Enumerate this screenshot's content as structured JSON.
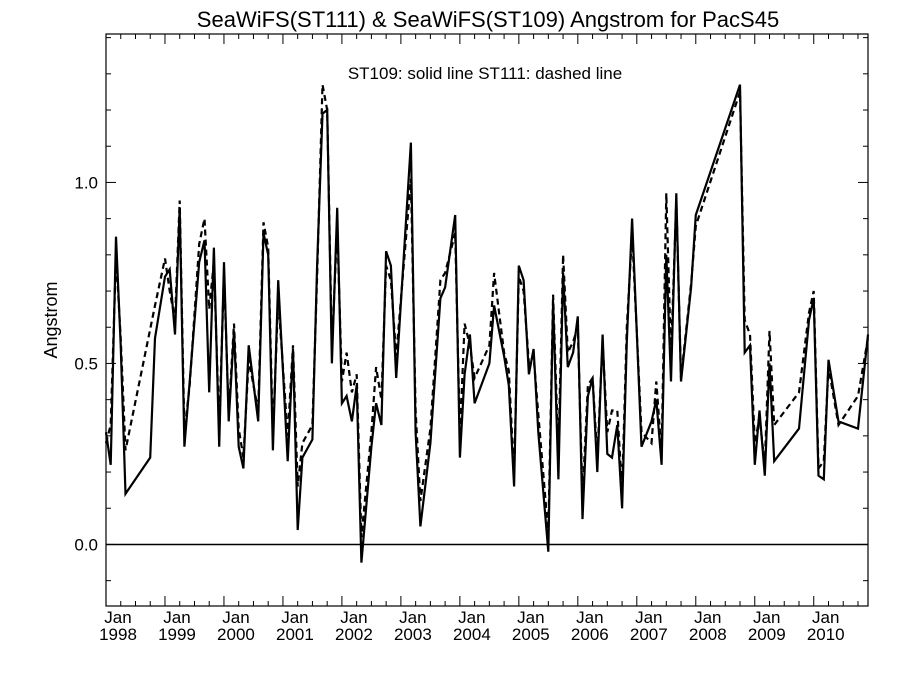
{
  "chart_data": {
    "type": "line",
    "title": "SeaWiFS(ST111) & SeaWiFS(ST109)  Angstrom for PacS45",
    "annotation": "ST109: solid line   ST111: dashed line",
    "ylabel": "Angstrom",
    "xlabel": "",
    "x_unit": "decimal year",
    "xlim": [
      1998.0,
      2010.92
    ],
    "ylim": [
      -0.17,
      1.41
    ],
    "yticks": [
      0.0,
      0.5,
      1.0
    ],
    "ytick_labels": [
      "0.0",
      "0.5",
      "1.0"
    ],
    "xticks": [
      {
        "month": "Jan",
        "year": "1998",
        "x": 1998
      },
      {
        "month": "Jan",
        "year": "1999",
        "x": 1999
      },
      {
        "month": "Jan",
        "year": "2000",
        "x": 2000
      },
      {
        "month": "Jan",
        "year": "2001",
        "x": 2001
      },
      {
        "month": "Jan",
        "year": "2002",
        "x": 2002
      },
      {
        "month": "Jan",
        "year": "2003",
        "x": 2003
      },
      {
        "month": "Jan",
        "year": "2004",
        "x": 2004
      },
      {
        "month": "Jan",
        "year": "2005",
        "x": 2005
      },
      {
        "month": "Jan",
        "year": "2006",
        "x": 2006
      },
      {
        "month": "Jan",
        "year": "2007",
        "x": 2007
      },
      {
        "month": "Jan",
        "year": "2008",
        "x": 2008
      },
      {
        "month": "Jan",
        "year": "2009",
        "x": 2009
      },
      {
        "month": "Jan",
        "year": "2010",
        "x": 2010
      }
    ],
    "grid": false,
    "zero_line": true,
    "series": [
      {
        "line_style": "solid",
        "color": "#000000",
        "points": [
          [
            1998.0,
            0.31
          ],
          [
            1998.08,
            0.22
          ],
          [
            1998.17,
            0.85
          ],
          [
            1998.25,
            0.55
          ],
          [
            1998.33,
            0.14
          ],
          [
            1998.75,
            0.24
          ],
          [
            1998.83,
            0.57
          ],
          [
            1999.0,
            0.74
          ],
          [
            1999.08,
            0.76
          ],
          [
            1999.17,
            0.58
          ],
          [
            1999.25,
            0.93
          ],
          [
            1999.33,
            0.27
          ],
          [
            1999.42,
            0.45
          ],
          [
            1999.58,
            0.78
          ],
          [
            1999.67,
            0.84
          ],
          [
            1999.75,
            0.42
          ],
          [
            1999.83,
            0.82
          ],
          [
            1999.92,
            0.27
          ],
          [
            2000.0,
            0.78
          ],
          [
            2000.08,
            0.34
          ],
          [
            2000.17,
            0.59
          ],
          [
            2000.25,
            0.27
          ],
          [
            2000.33,
            0.21
          ],
          [
            2000.42,
            0.55
          ],
          [
            2000.58,
            0.34
          ],
          [
            2000.67,
            0.86
          ],
          [
            2000.75,
            0.8
          ],
          [
            2000.83,
            0.26
          ],
          [
            2000.92,
            0.73
          ],
          [
            2001.08,
            0.23
          ],
          [
            2001.17,
            0.54
          ],
          [
            2001.25,
            0.04
          ],
          [
            2001.33,
            0.24
          ],
          [
            2001.5,
            0.29
          ],
          [
            2001.58,
            0.77
          ],
          [
            2001.67,
            1.19
          ],
          [
            2001.75,
            1.2
          ],
          [
            2001.83,
            0.5
          ],
          [
            2001.92,
            0.93
          ],
          [
            2002.0,
            0.39
          ],
          [
            2002.08,
            0.41
          ],
          [
            2002.17,
            0.34
          ],
          [
            2002.25,
            0.44
          ],
          [
            2002.33,
            -0.05
          ],
          [
            2002.5,
            0.27
          ],
          [
            2002.58,
            0.39
          ],
          [
            2002.67,
            0.33
          ],
          [
            2002.75,
            0.81
          ],
          [
            2002.83,
            0.77
          ],
          [
            2002.92,
            0.46
          ],
          [
            2003.17,
            1.11
          ],
          [
            2003.25,
            0.31
          ],
          [
            2003.33,
            0.05
          ],
          [
            2003.5,
            0.28
          ],
          [
            2003.67,
            0.68
          ],
          [
            2003.75,
            0.71
          ],
          [
            2003.92,
            0.91
          ],
          [
            2004.0,
            0.24
          ],
          [
            2004.08,
            0.47
          ],
          [
            2004.17,
            0.58
          ],
          [
            2004.25,
            0.39
          ],
          [
            2004.5,
            0.5
          ],
          [
            2004.58,
            0.66
          ],
          [
            2004.75,
            0.52
          ],
          [
            2004.83,
            0.44
          ],
          [
            2004.92,
            0.16
          ],
          [
            2005.0,
            0.77
          ],
          [
            2005.08,
            0.73
          ],
          [
            2005.17,
            0.47
          ],
          [
            2005.25,
            0.54
          ],
          [
            2005.33,
            0.31
          ],
          [
            2005.5,
            -0.02
          ],
          [
            2005.58,
            0.67
          ],
          [
            2005.67,
            0.18
          ],
          [
            2005.75,
            0.75
          ],
          [
            2005.83,
            0.49
          ],
          [
            2005.92,
            0.53
          ],
          [
            2006.0,
            0.63
          ],
          [
            2006.08,
            0.07
          ],
          [
            2006.17,
            0.41
          ],
          [
            2006.25,
            0.46
          ],
          [
            2006.33,
            0.2
          ],
          [
            2006.42,
            0.58
          ],
          [
            2006.5,
            0.25
          ],
          [
            2006.58,
            0.24
          ],
          [
            2006.67,
            0.33
          ],
          [
            2006.75,
            0.1
          ],
          [
            2006.83,
            0.56
          ],
          [
            2006.92,
            0.9
          ],
          [
            2007.08,
            0.27
          ],
          [
            2007.25,
            0.34
          ],
          [
            2007.33,
            0.4
          ],
          [
            2007.42,
            0.22
          ],
          [
            2007.5,
            0.8
          ],
          [
            2007.58,
            0.45
          ],
          [
            2007.67,
            0.97
          ],
          [
            2007.75,
            0.45
          ],
          [
            2007.92,
            0.71
          ],
          [
            2008.0,
            0.91
          ],
          [
            2008.75,
            1.27
          ],
          [
            2008.83,
            0.53
          ],
          [
            2008.92,
            0.55
          ],
          [
            2009.0,
            0.22
          ],
          [
            2009.08,
            0.37
          ],
          [
            2009.17,
            0.19
          ],
          [
            2009.25,
            0.5
          ],
          [
            2009.33,
            0.23
          ],
          [
            2009.75,
            0.32
          ],
          [
            2009.92,
            0.62
          ],
          [
            2010.0,
            0.68
          ],
          [
            2010.08,
            0.19
          ],
          [
            2010.17,
            0.18
          ],
          [
            2010.25,
            0.51
          ],
          [
            2010.42,
            0.34
          ],
          [
            2010.75,
            0.32
          ],
          [
            2010.92,
            0.58
          ]
        ]
      },
      {
        "line_style": "dashed",
        "color": "#000000",
        "points": [
          [
            1998.0,
            0.28
          ],
          [
            1998.08,
            0.33
          ],
          [
            1998.17,
            0.8
          ],
          [
            1998.25,
            0.57
          ],
          [
            1998.33,
            0.26
          ],
          [
            1998.83,
            0.66
          ],
          [
            1999.0,
            0.79
          ],
          [
            1999.08,
            0.7
          ],
          [
            1999.17,
            0.62
          ],
          [
            1999.25,
            0.95
          ],
          [
            1999.33,
            0.31
          ],
          [
            1999.42,
            0.44
          ],
          [
            1999.58,
            0.83
          ],
          [
            1999.67,
            0.9
          ],
          [
            1999.75,
            0.65
          ],
          [
            1999.83,
            0.78
          ],
          [
            1999.92,
            0.32
          ],
          [
            2000.0,
            0.75
          ],
          [
            2000.08,
            0.36
          ],
          [
            2000.17,
            0.61
          ],
          [
            2000.25,
            0.32
          ],
          [
            2000.33,
            0.24
          ],
          [
            2000.42,
            0.51
          ],
          [
            2000.58,
            0.37
          ],
          [
            2000.67,
            0.89
          ],
          [
            2000.75,
            0.82
          ],
          [
            2000.83,
            0.3
          ],
          [
            2000.92,
            0.68
          ],
          [
            2001.08,
            0.3
          ],
          [
            2001.17,
            0.55
          ],
          [
            2001.25,
            0.16
          ],
          [
            2001.33,
            0.28
          ],
          [
            2001.5,
            0.33
          ],
          [
            2001.58,
            0.74
          ],
          [
            2001.67,
            1.27
          ],
          [
            2001.75,
            1.2
          ],
          [
            2001.83,
            0.54
          ],
          [
            2001.92,
            0.88
          ],
          [
            2002.0,
            0.45
          ],
          [
            2002.08,
            0.53
          ],
          [
            2002.17,
            0.42
          ],
          [
            2002.25,
            0.47
          ],
          [
            2002.33,
            0.02
          ],
          [
            2002.5,
            0.31
          ],
          [
            2002.58,
            0.49
          ],
          [
            2002.67,
            0.4
          ],
          [
            2002.75,
            0.77
          ],
          [
            2002.83,
            0.73
          ],
          [
            2002.92,
            0.52
          ],
          [
            2003.17,
            1.01
          ],
          [
            2003.25,
            0.37
          ],
          [
            2003.33,
            0.12
          ],
          [
            2003.5,
            0.32
          ],
          [
            2003.67,
            0.73
          ],
          [
            2003.75,
            0.75
          ],
          [
            2003.92,
            0.86
          ],
          [
            2004.0,
            0.3
          ],
          [
            2004.08,
            0.61
          ],
          [
            2004.17,
            0.55
          ],
          [
            2004.25,
            0.46
          ],
          [
            2004.5,
            0.55
          ],
          [
            2004.58,
            0.75
          ],
          [
            2004.75,
            0.53
          ],
          [
            2004.83,
            0.48
          ],
          [
            2004.92,
            0.19
          ],
          [
            2005.0,
            0.74
          ],
          [
            2005.08,
            0.7
          ],
          [
            2005.17,
            0.5
          ],
          [
            2005.25,
            0.52
          ],
          [
            2005.33,
            0.36
          ],
          [
            2005.5,
            0.03
          ],
          [
            2005.58,
            0.69
          ],
          [
            2005.67,
            0.25
          ],
          [
            2005.75,
            0.8
          ],
          [
            2005.83,
            0.53
          ],
          [
            2005.92,
            0.56
          ],
          [
            2006.0,
            0.6
          ],
          [
            2006.08,
            0.13
          ],
          [
            2006.17,
            0.44
          ],
          [
            2006.25,
            0.46
          ],
          [
            2006.33,
            0.24
          ],
          [
            2006.42,
            0.56
          ],
          [
            2006.5,
            0.31
          ],
          [
            2006.58,
            0.37
          ],
          [
            2006.67,
            0.37
          ],
          [
            2006.75,
            0.15
          ],
          [
            2006.83,
            0.6
          ],
          [
            2006.92,
            0.86
          ],
          [
            2007.08,
            0.31
          ],
          [
            2007.25,
            0.28
          ],
          [
            2007.33,
            0.45
          ],
          [
            2007.42,
            0.25
          ],
          [
            2007.5,
            0.97
          ],
          [
            2007.58,
            0.52
          ],
          [
            2007.67,
            0.95
          ],
          [
            2007.75,
            0.46
          ],
          [
            2007.92,
            0.72
          ],
          [
            2008.0,
            0.88
          ],
          [
            2008.75,
            1.25
          ],
          [
            2008.83,
            0.62
          ],
          [
            2008.92,
            0.58
          ],
          [
            2009.0,
            0.28
          ],
          [
            2009.08,
            0.35
          ],
          [
            2009.17,
            0.22
          ],
          [
            2009.25,
            0.59
          ],
          [
            2009.33,
            0.33
          ],
          [
            2009.75,
            0.42
          ],
          [
            2009.92,
            0.64
          ],
          [
            2010.0,
            0.7
          ],
          [
            2010.08,
            0.21
          ],
          [
            2010.17,
            0.23
          ],
          [
            2010.25,
            0.49
          ],
          [
            2010.42,
            0.33
          ],
          [
            2010.75,
            0.41
          ],
          [
            2010.92,
            0.57
          ]
        ]
      }
    ]
  }
}
